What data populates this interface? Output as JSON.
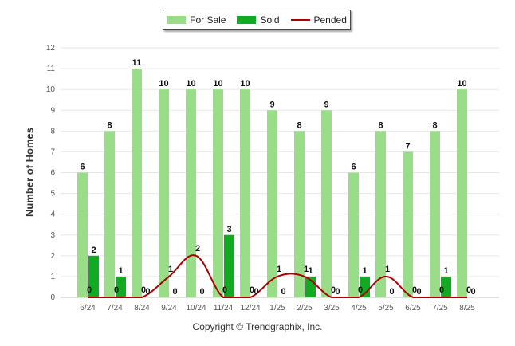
{
  "chart_data": {
    "type": "bar",
    "categories": [
      "6/24",
      "7/24",
      "8/24",
      "9/24",
      "10/24",
      "11/24",
      "12/24",
      "1/25",
      "2/25",
      "3/25",
      "4/25",
      "5/25",
      "6/25",
      "7/25",
      "8/25"
    ],
    "series": [
      {
        "name": "For Sale",
        "type": "bar",
        "color": "#99dd88",
        "values": [
          6,
          8,
          11,
          10,
          10,
          10,
          10,
          9,
          8,
          9,
          6,
          8,
          7,
          8,
          10
        ]
      },
      {
        "name": "Sold",
        "type": "bar",
        "color": "#11aa22",
        "values": [
          2,
          1,
          0,
          0,
          0,
          3,
          0,
          0,
          1,
          0,
          1,
          0,
          0,
          1,
          0
        ]
      },
      {
        "name": "Pended",
        "type": "line",
        "color": "#aa0000",
        "values": [
          0,
          0,
          0,
          1,
          2,
          0,
          0,
          1,
          1,
          0,
          0,
          1,
          0,
          0,
          0
        ]
      }
    ],
    "ylabel": "Number of Homes",
    "xlabel": "",
    "ylim": [
      0,
      12
    ],
    "yticks": [
      0,
      1,
      2,
      3,
      4,
      5,
      6,
      7,
      8,
      9,
      10,
      11,
      12
    ],
    "grid": true,
    "legend_position": "top-center"
  },
  "footer": {
    "copyright": "Copyright © Trendgraphix, Inc."
  }
}
